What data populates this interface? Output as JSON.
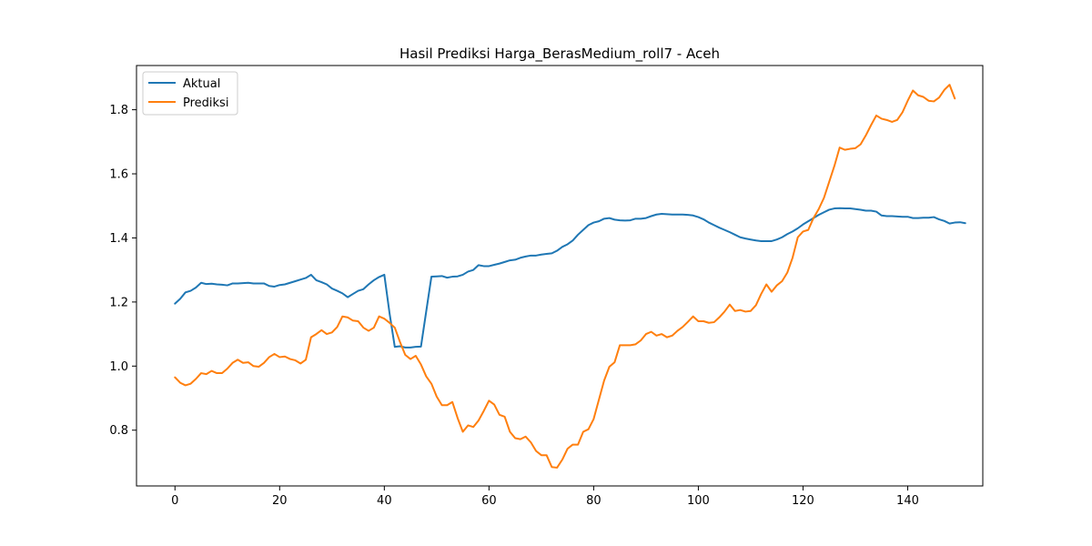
{
  "chart_data": {
    "type": "line",
    "title": "Hasil Prediksi Harga_BerasMedium_roll7 - Aceh",
    "xlabel": "",
    "ylabel": "",
    "xlim": [
      -7.35,
      154.35
    ],
    "ylim": [
      0.626,
      1.938
    ],
    "x_ticks": [
      0,
      20,
      40,
      60,
      80,
      100,
      120,
      140
    ],
    "y_ticks": [
      0.8,
      1.0,
      1.2,
      1.4,
      1.6,
      1.8
    ],
    "grid": false,
    "legend_position": "upper left",
    "series": [
      {
        "name": "Aktual",
        "color": "#1f77b4",
        "values": [
          1.195,
          1.21,
          1.23,
          1.235,
          1.245,
          1.26,
          1.256,
          1.257,
          1.255,
          1.254,
          1.252,
          1.258,
          1.258,
          1.259,
          1.26,
          1.258,
          1.258,
          1.258,
          1.25,
          1.248,
          1.253,
          1.255,
          1.26,
          1.265,
          1.27,
          1.275,
          1.285,
          1.268,
          1.262,
          1.255,
          1.242,
          1.235,
          1.227,
          1.215,
          1.225,
          1.235,
          1.24,
          1.255,
          1.268,
          1.278,
          1.285,
          1.165,
          1.06,
          1.062,
          1.058,
          1.058,
          1.06,
          1.061,
          1.17,
          1.279,
          1.28,
          1.281,
          1.276,
          1.279,
          1.28,
          1.285,
          1.295,
          1.3,
          1.315,
          1.312,
          1.312,
          1.316,
          1.32,
          1.325,
          1.33,
          1.332,
          1.338,
          1.342,
          1.345,
          1.345,
          1.348,
          1.35,
          1.352,
          1.36,
          1.372,
          1.38,
          1.392,
          1.41,
          1.425,
          1.44,
          1.448,
          1.452,
          1.46,
          1.462,
          1.457,
          1.455,
          1.454,
          1.455,
          1.46,
          1.46,
          1.462,
          1.468,
          1.473,
          1.475,
          1.474,
          1.473,
          1.473,
          1.473,
          1.472,
          1.47,
          1.465,
          1.458,
          1.448,
          1.44,
          1.432,
          1.425,
          1.418,
          1.41,
          1.402,
          1.398,
          1.395,
          1.392,
          1.39,
          1.39,
          1.39,
          1.395,
          1.402,
          1.412,
          1.42,
          1.43,
          1.442,
          1.452,
          1.462,
          1.472,
          1.48,
          1.488,
          1.492,
          1.493,
          1.492,
          1.492,
          1.49,
          1.488,
          1.485,
          1.485,
          1.482,
          1.47,
          1.468,
          1.468,
          1.467,
          1.466,
          1.466,
          1.462,
          1.462,
          1.463,
          1.463,
          1.465,
          1.458,
          1.453,
          1.445,
          1.448,
          1.449,
          1.446
        ]
      },
      {
        "name": "Prediksi",
        "color": "#ff7f0e",
        "values": [
          0.965,
          0.948,
          0.94,
          0.945,
          0.96,
          0.978,
          0.975,
          0.985,
          0.978,
          0.978,
          0.992,
          1.01,
          1.02,
          1.01,
          1.012,
          1.0,
          0.998,
          1.01,
          1.028,
          1.038,
          1.028,
          1.03,
          1.022,
          1.018,
          1.008,
          1.02,
          1.09,
          1.1,
          1.112,
          1.1,
          1.105,
          1.122,
          1.155,
          1.152,
          1.142,
          1.14,
          1.12,
          1.11,
          1.12,
          1.155,
          1.148,
          1.135,
          1.12,
          1.075,
          1.035,
          1.022,
          1.032,
          1.005,
          0.968,
          0.945,
          0.905,
          0.878,
          0.878,
          0.888,
          0.838,
          0.795,
          0.815,
          0.81,
          0.83,
          0.86,
          0.892,
          0.88,
          0.848,
          0.842,
          0.795,
          0.775,
          0.772,
          0.78,
          0.762,
          0.735,
          0.722,
          0.722,
          0.685,
          0.683,
          0.708,
          0.742,
          0.755,
          0.755,
          0.795,
          0.803,
          0.835,
          0.895,
          0.955,
          0.998,
          1.012,
          1.065,
          1.065,
          1.065,
          1.068,
          1.08,
          1.1,
          1.107,
          1.095,
          1.1,
          1.09,
          1.095,
          1.11,
          1.122,
          1.138,
          1.155,
          1.14,
          1.14,
          1.135,
          1.137,
          1.152,
          1.17,
          1.192,
          1.172,
          1.175,
          1.17,
          1.172,
          1.19,
          1.225,
          1.255,
          1.232,
          1.252,
          1.265,
          1.292,
          1.338,
          1.402,
          1.42,
          1.425,
          1.462,
          1.49,
          1.525,
          1.575,
          1.625,
          1.682,
          1.675,
          1.678,
          1.68,
          1.692,
          1.72,
          1.752,
          1.782,
          1.772,
          1.768,
          1.762,
          1.768,
          1.792,
          1.828,
          1.86,
          1.845,
          1.84,
          1.828,
          1.826,
          1.838,
          1.862,
          1.878,
          1.835
        ]
      }
    ]
  }
}
